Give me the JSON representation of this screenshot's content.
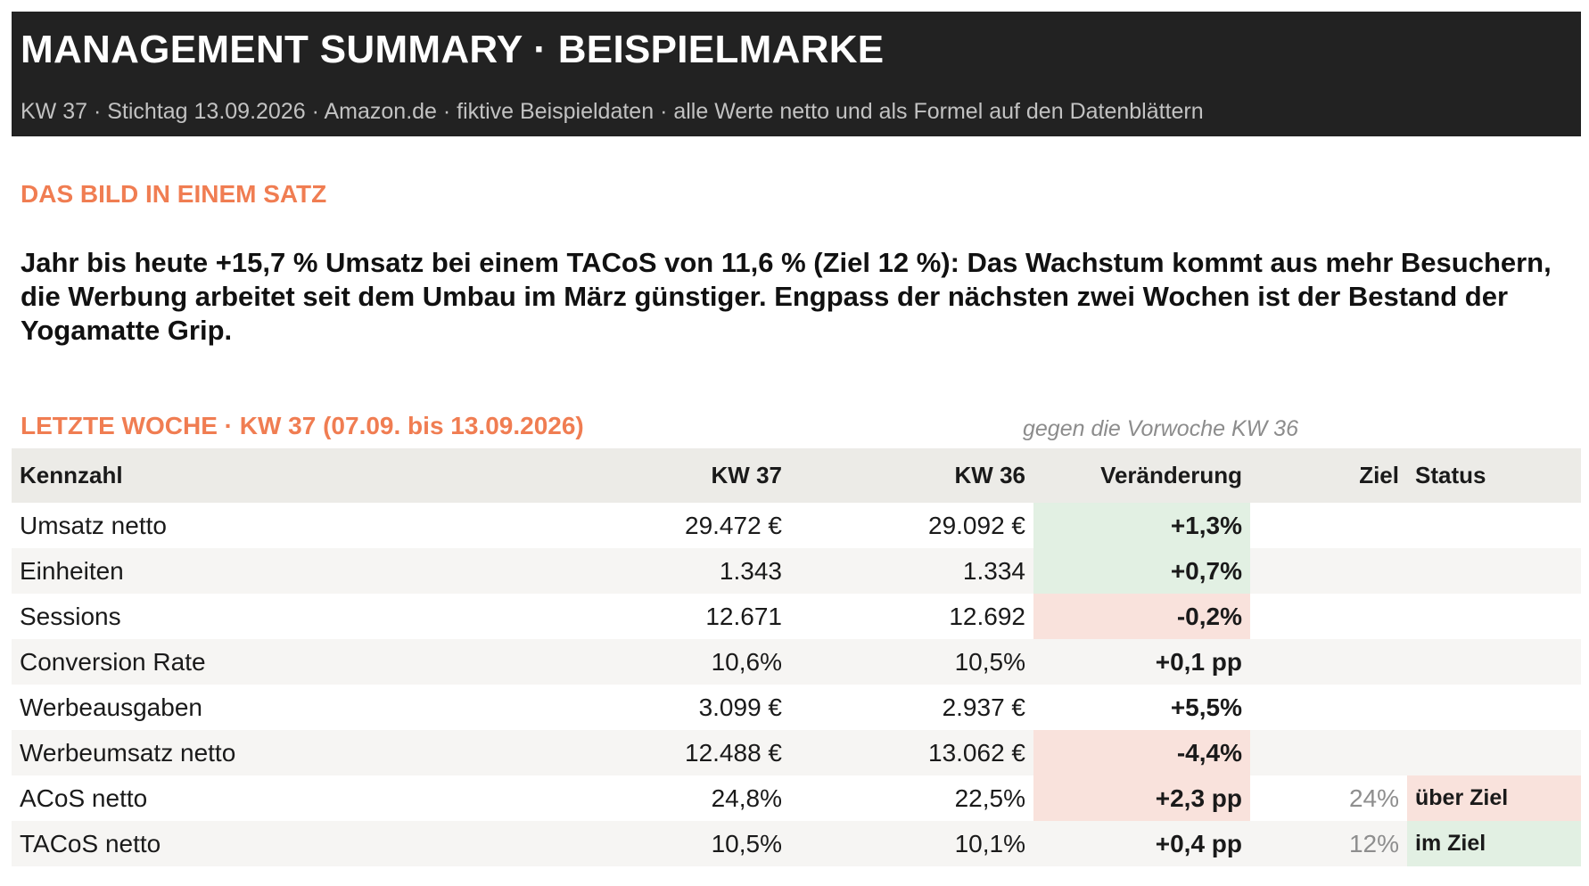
{
  "header": {
    "title": "MANAGEMENT SUMMARY · BEISPIELMARKE",
    "subtitle": "KW 37 · Stichtag 13.09.2026 · Amazon.de · fiktive Beispieldaten · alle Werte netto und als Formel auf den Datenblättern"
  },
  "summary": {
    "label": "DAS BILD IN EINEM SATZ",
    "text": "Jahr bis heute +15,7 % Umsatz bei einem TACoS von 11,6 % (Ziel 12 %): Das Wachstum kommt aus mehr Besuchern, die Werbung arbeitet seit dem Umbau im März günstiger. Engpass der nächsten zwei Wochen ist der Bestand der Yogamatte Grip."
  },
  "week": {
    "label": "LETZTE WOCHE · KW 37 (07.09. bis 13.09.2026)",
    "compare_note": "gegen die Vorwoche KW 36",
    "columns": [
      "Kennzahl",
      "KW 37",
      "KW 36",
      "Veränderung",
      "Ziel",
      "Status"
    ],
    "rows": [
      {
        "name": "Umsatz netto",
        "kw37": "29.472 €",
        "kw36": "29.092 €",
        "change": "+1,3%",
        "trend": "pos",
        "target": "",
        "status": "",
        "status_tone": ""
      },
      {
        "name": "Einheiten",
        "kw37": "1.343",
        "kw36": "1.334",
        "change": "+0,7%",
        "trend": "pos",
        "target": "",
        "status": "",
        "status_tone": ""
      },
      {
        "name": "Sessions",
        "kw37": "12.671",
        "kw36": "12.692",
        "change": "-0,2%",
        "trend": "neg",
        "target": "",
        "status": "",
        "status_tone": ""
      },
      {
        "name": "Conversion Rate",
        "kw37": "10,6%",
        "kw36": "10,5%",
        "change": "+0,1 pp",
        "trend": "",
        "target": "",
        "status": "",
        "status_tone": ""
      },
      {
        "name": "Werbeausgaben",
        "kw37": "3.099 €",
        "kw36": "2.937 €",
        "change": "+5,5%",
        "trend": "",
        "target": "",
        "status": "",
        "status_tone": ""
      },
      {
        "name": "Werbeumsatz netto",
        "kw37": "12.488 €",
        "kw36": "13.062 €",
        "change": "-4,4%",
        "trend": "neg",
        "target": "",
        "status": "",
        "status_tone": ""
      },
      {
        "name": "ACoS netto",
        "kw37": "24,8%",
        "kw36": "22,5%",
        "change": "+2,3 pp",
        "trend": "neg",
        "target": "24%",
        "status": "über Ziel",
        "status_tone": "bad"
      },
      {
        "name": "TACoS netto",
        "kw37": "10,5%",
        "kw36": "10,1%",
        "change": "+0,4 pp",
        "trend": "",
        "target": "12%",
        "status": "im Ziel",
        "status_tone": "good"
      }
    ]
  },
  "colors": {
    "header_bg": "#222222",
    "accent": "#f07d52",
    "positive_bg": "#e2f0e3",
    "negative_bg": "#f9e2dc",
    "table_header_bg": "#ecebe7"
  }
}
